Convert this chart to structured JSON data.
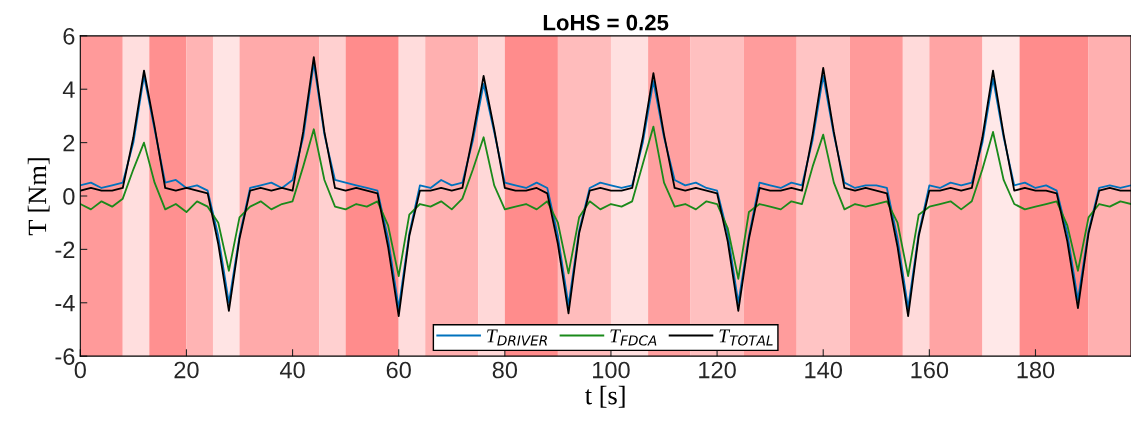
{
  "chart_data": {
    "type": "line",
    "title": "LoHS = 0.25",
    "xlabel": "t [s]",
    "ylabel": "T [Nm]",
    "x": [
      0,
      2,
      4,
      6,
      8,
      10,
      12,
      14,
      16,
      18,
      20,
      22,
      24,
      26,
      28,
      30,
      32,
      34,
      36,
      38,
      40,
      42,
      44,
      46,
      48,
      50,
      52,
      54,
      56,
      58,
      60,
      62,
      64,
      66,
      68,
      70,
      72,
      74,
      76,
      78,
      80,
      82,
      84,
      86,
      88,
      90,
      92,
      94,
      96,
      98,
      100,
      102,
      104,
      106,
      108,
      110,
      112,
      114,
      116,
      118,
      120,
      122,
      124,
      126,
      128,
      130,
      132,
      134,
      136,
      138,
      140,
      142,
      144,
      146,
      148,
      150,
      152,
      154,
      156,
      158,
      160,
      162,
      164,
      166,
      168,
      170,
      172,
      174,
      176,
      178,
      180,
      182,
      184,
      186,
      188,
      190,
      192,
      194,
      196,
      198
    ],
    "series": [
      {
        "name": "T$_{DRIVER}$",
        "color": "#0072bd",
        "values": [
          0.4,
          0.5,
          0.3,
          0.4,
          0.5,
          2.0,
          4.5,
          2.5,
          0.5,
          0.6,
          0.3,
          0.4,
          0.2,
          -1.5,
          -4.0,
          -1.5,
          0.3,
          0.4,
          0.5,
          0.3,
          0.6,
          2.2,
          5.0,
          2.3,
          0.6,
          0.5,
          0.4,
          0.3,
          0.2,
          -1.6,
          -4.2,
          -1.4,
          0.4,
          0.3,
          0.6,
          0.4,
          0.5,
          2.1,
          4.2,
          2.4,
          0.5,
          0.4,
          0.3,
          0.5,
          0.3,
          -1.5,
          -4.1,
          -1.3,
          0.3,
          0.5,
          0.4,
          0.3,
          0.4,
          2.0,
          4.3,
          2.2,
          0.6,
          0.4,
          0.5,
          0.3,
          0.2,
          -1.4,
          -4.0,
          -1.5,
          0.5,
          0.4,
          0.3,
          0.5,
          0.4,
          2.1,
          4.5,
          2.3,
          0.5,
          0.3,
          0.4,
          0.4,
          0.3,
          -1.6,
          -4.2,
          -1.4,
          0.4,
          0.3,
          0.5,
          0.4,
          0.5,
          2.0,
          4.4,
          2.2,
          0.4,
          0.5,
          0.3,
          0.4,
          0.2,
          -1.4,
          -3.9,
          -1.3,
          0.3,
          0.4,
          0.3,
          0.4
        ]
      },
      {
        "name": "T$_{FDCA}$",
        "color": "#1a8a1a",
        "values": [
          -0.3,
          -0.5,
          -0.2,
          -0.4,
          -0.1,
          1.0,
          2.0,
          0.5,
          -0.5,
          -0.3,
          -0.6,
          -0.2,
          -0.4,
          -1.0,
          -2.8,
          -0.8,
          -0.4,
          -0.2,
          -0.5,
          -0.3,
          -0.2,
          1.1,
          2.5,
          0.6,
          -0.4,
          -0.5,
          -0.3,
          -0.4,
          -0.2,
          -1.1,
          -3.0,
          -0.7,
          -0.3,
          -0.4,
          -0.2,
          -0.5,
          -0.1,
          1.0,
          2.2,
          0.4,
          -0.5,
          -0.4,
          -0.3,
          -0.5,
          -0.2,
          -1.0,
          -2.9,
          -0.8,
          -0.2,
          -0.5,
          -0.3,
          -0.4,
          -0.2,
          1.2,
          2.6,
          0.5,
          -0.4,
          -0.3,
          -0.5,
          -0.2,
          -0.3,
          -1.2,
          -3.1,
          -0.6,
          -0.3,
          -0.4,
          -0.5,
          -0.2,
          -0.3,
          1.1,
          2.3,
          0.5,
          -0.5,
          -0.3,
          -0.4,
          -0.3,
          -0.2,
          -1.0,
          -3.0,
          -0.7,
          -0.4,
          -0.3,
          -0.2,
          -0.5,
          -0.2,
          1.0,
          2.4,
          0.6,
          -0.3,
          -0.5,
          -0.4,
          -0.3,
          -0.2,
          -1.1,
          -2.8,
          -0.8,
          -0.3,
          -0.4,
          -0.2,
          -0.3
        ]
      },
      {
        "name": "T$_{TOTAL}$",
        "color": "#000000",
        "values": [
          0.2,
          0.3,
          0.2,
          0.2,
          0.3,
          2.2,
          4.7,
          2.6,
          0.3,
          0.2,
          0.3,
          0.2,
          0.1,
          -1.8,
          -4.3,
          -1.6,
          0.2,
          0.3,
          0.2,
          0.3,
          0.2,
          2.4,
          5.2,
          2.4,
          0.3,
          0.2,
          0.3,
          0.2,
          0.1,
          -1.9,
          -4.5,
          -1.5,
          0.2,
          0.2,
          0.3,
          0.2,
          0.3,
          2.3,
          4.5,
          2.5,
          0.3,
          0.2,
          0.2,
          0.3,
          0.1,
          -1.8,
          -4.4,
          -1.4,
          0.2,
          0.3,
          0.2,
          0.2,
          0.3,
          2.2,
          4.6,
          2.3,
          0.3,
          0.2,
          0.3,
          0.2,
          0.1,
          -1.7,
          -4.3,
          -1.6,
          0.3,
          0.2,
          0.2,
          0.3,
          0.2,
          2.3,
          4.8,
          2.4,
          0.3,
          0.2,
          0.3,
          0.2,
          0.1,
          -1.9,
          -4.5,
          -1.5,
          0.2,
          0.2,
          0.3,
          0.2,
          0.3,
          2.2,
          4.7,
          2.3,
          0.2,
          0.3,
          0.2,
          0.2,
          0.1,
          -1.7,
          -4.2,
          -1.4,
          0.2,
          0.3,
          0.2,
          0.2
        ]
      }
    ],
    "xlim": [
      0,
      198
    ],
    "ylim": [
      -6,
      6
    ],
    "xticks": [
      0,
      20,
      40,
      60,
      80,
      100,
      120,
      140,
      160,
      180
    ],
    "yticks": [
      -6,
      -4,
      -2,
      0,
      2,
      4,
      6
    ],
    "bands": [
      {
        "axis": "x",
        "from": 0,
        "to": 8,
        "color": "#ff9a9a"
      },
      {
        "axis": "x",
        "from": 8,
        "to": 13,
        "color": "#ffdede"
      },
      {
        "axis": "x",
        "from": 13,
        "to": 20,
        "color": "#ff9090"
      },
      {
        "axis": "x",
        "from": 20,
        "to": 25,
        "color": "#ffb4b4"
      },
      {
        "axis": "x",
        "from": 25,
        "to": 30,
        "color": "#ffe4e4"
      },
      {
        "axis": "x",
        "from": 30,
        "to": 45,
        "color": "#ffaaaa"
      },
      {
        "axis": "x",
        "from": 45,
        "to": 50,
        "color": "#ffd0d0"
      },
      {
        "axis": "x",
        "from": 50,
        "to": 60,
        "color": "#ff8c8c"
      },
      {
        "axis": "x",
        "from": 60,
        "to": 65,
        "color": "#ffdcdc"
      },
      {
        "axis": "x",
        "from": 65,
        "to": 75,
        "color": "#ffb0b0"
      },
      {
        "axis": "x",
        "from": 75,
        "to": 80,
        "color": "#ffd8d8"
      },
      {
        "axis": "x",
        "from": 80,
        "to": 90,
        "color": "#ff8c8c"
      },
      {
        "axis": "x",
        "from": 90,
        "to": 100,
        "color": "#ffbcbc"
      },
      {
        "axis": "x",
        "from": 100,
        "to": 107,
        "color": "#ffe0e0"
      },
      {
        "axis": "x",
        "from": 107,
        "to": 115,
        "color": "#ffa0a0"
      },
      {
        "axis": "x",
        "from": 115,
        "to": 125,
        "color": "#ffc0c0"
      },
      {
        "axis": "x",
        "from": 125,
        "to": 135,
        "color": "#ff9c9c"
      },
      {
        "axis": "x",
        "from": 135,
        "to": 145,
        "color": "#ffc4c4"
      },
      {
        "axis": "x",
        "from": 145,
        "to": 155,
        "color": "#ff9a9a"
      },
      {
        "axis": "x",
        "from": 155,
        "to": 160,
        "color": "#ffdada"
      },
      {
        "axis": "x",
        "from": 160,
        "to": 170,
        "color": "#ffa4a4"
      },
      {
        "axis": "x",
        "from": 170,
        "to": 177,
        "color": "#ffe8e8"
      },
      {
        "axis": "x",
        "from": 177,
        "to": 190,
        "color": "#ff8c8c"
      },
      {
        "axis": "x",
        "from": 190,
        "to": 198,
        "color": "#ffb0b0"
      }
    ],
    "legend": "bottom",
    "grid": false,
    "marker": "none",
    "line_style": "solid"
  }
}
